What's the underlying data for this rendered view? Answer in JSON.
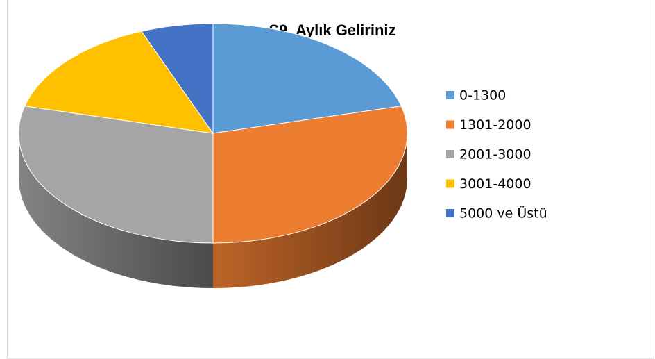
{
  "chart_data": {
    "type": "pie",
    "title": "S9. Aylık Geliriniz",
    "categories": [
      "0-1300",
      "1301-2000",
      "2001-3000",
      "3001-4000",
      "5000 ve Üstü"
    ],
    "values": [
      21,
      29,
      29,
      15,
      6
    ],
    "colors": [
      "#5b9bd5",
      "#ed7d31",
      "#a5a5a5",
      "#ffc000",
      "#4472c4"
    ],
    "legend": "right"
  }
}
